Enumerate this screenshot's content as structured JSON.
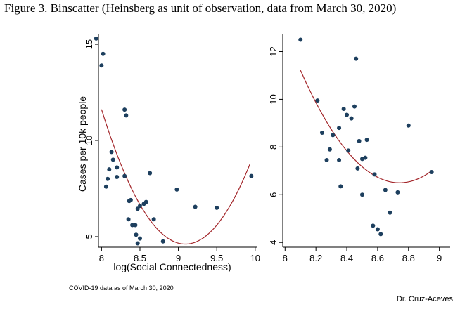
{
  "figure_title": "Figure 3. Binscatter (Heinsberg as unit of observation, data from March 30, 2020)",
  "footnote": "COVID-19 data as of March 30, 2020",
  "author": "Dr. Cruz-Aceves",
  "colors": {
    "points": "#1d3f5e",
    "fit_line": "#a3262a",
    "axes": "#000000"
  },
  "chart_data": [
    {
      "type": "scatter",
      "xlabel": "log(Social Connectedness)",
      "ylabel": "Cases per 10k people",
      "xlim": [
        7.96,
        10.02
      ],
      "ylim": [
        4.45,
        15.55
      ],
      "xticks": [
        8,
        8.5,
        9,
        9.5,
        10
      ],
      "xtick_labels": [
        "8",
        "8.5",
        "9",
        "9.5",
        "10"
      ],
      "yticks": [
        5,
        10,
        15
      ],
      "ytick_labels": [
        "5",
        "10",
        "15"
      ],
      "ytick_rotation": "vertical",
      "grid": false,
      "points": [
        [
          7.93,
          15.3
        ],
        [
          8.02,
          14.5
        ],
        [
          8.0,
          13.9
        ],
        [
          8.3,
          11.6
        ],
        [
          8.32,
          11.3
        ],
        [
          8.13,
          9.4
        ],
        [
          8.15,
          9.0
        ],
        [
          8.1,
          8.5
        ],
        [
          8.2,
          8.6
        ],
        [
          8.08,
          8.0
        ],
        [
          8.2,
          8.1
        ],
        [
          8.3,
          8.15
        ],
        [
          8.63,
          8.3
        ],
        [
          8.06,
          7.6
        ],
        [
          8.38,
          6.9
        ],
        [
          8.36,
          6.85
        ],
        [
          8.58,
          6.8
        ],
        [
          8.55,
          6.7
        ],
        [
          8.5,
          6.6
        ],
        [
          8.47,
          6.45
        ],
        [
          8.4,
          5.6
        ],
        [
          8.44,
          5.6
        ],
        [
          8.35,
          5.9
        ],
        [
          8.68,
          5.9
        ],
        [
          8.45,
          5.1
        ],
        [
          8.5,
          4.9
        ],
        [
          8.47,
          4.65
        ],
        [
          8.8,
          4.75
        ],
        [
          8.98,
          7.45
        ],
        [
          9.22,
          6.55
        ],
        [
          9.5,
          6.5
        ],
        [
          9.95,
          8.15
        ]
      ],
      "fit": {
        "type": "quadratic",
        "x": [
          8.0,
          8.5,
          9.0,
          9.5,
          9.93
        ],
        "y": [
          11.8,
          6.2,
          4.95,
          5.7,
          8.65
        ]
      }
    },
    {
      "type": "scatter",
      "xlabel": "",
      "ylabel": "",
      "xlim": [
        7.985,
        9.07
      ],
      "ylim": [
        3.8,
        12.75
      ],
      "xticks": [
        8,
        8.2,
        8.4,
        8.6,
        8.8,
        9
      ],
      "xtick_labels": [
        "8",
        "8.2",
        "8.4",
        "8.6",
        "8.8",
        "9"
      ],
      "yticks": [
        4,
        6,
        8,
        10,
        12
      ],
      "ytick_labels": [
        "4",
        "6",
        "8",
        "10",
        "12"
      ],
      "ytick_rotation": "vertical",
      "grid": false,
      "points": [
        [
          8.1,
          12.5
        ],
        [
          8.46,
          11.7
        ],
        [
          8.21,
          9.95
        ],
        [
          8.45,
          9.7
        ],
        [
          8.38,
          9.6
        ],
        [
          8.4,
          9.35
        ],
        [
          8.43,
          9.2
        ],
        [
          8.35,
          8.8
        ],
        [
          8.24,
          8.6
        ],
        [
          8.31,
          8.5
        ],
        [
          8.8,
          8.9
        ],
        [
          8.48,
          8.25
        ],
        [
          8.53,
          8.3
        ],
        [
          8.29,
          7.9
        ],
        [
          8.41,
          7.85
        ],
        [
          8.5,
          7.5
        ],
        [
          8.52,
          7.55
        ],
        [
          8.27,
          7.45
        ],
        [
          8.35,
          7.45
        ],
        [
          8.47,
          7.1
        ],
        [
          8.58,
          6.85
        ],
        [
          8.95,
          6.95
        ],
        [
          8.36,
          6.35
        ],
        [
          8.65,
          6.2
        ],
        [
          8.73,
          6.1
        ],
        [
          8.5,
          6.0
        ],
        [
          8.68,
          5.25
        ],
        [
          8.57,
          4.7
        ],
        [
          8.6,
          4.55
        ],
        [
          8.62,
          4.35
        ]
      ],
      "fit": {
        "type": "quadratic",
        "x": [
          8.1,
          8.3,
          8.5,
          8.7,
          8.75,
          8.95
        ],
        "y": [
          11.25,
          8.7,
          7.1,
          6.6,
          6.55,
          6.95
        ]
      }
    }
  ]
}
